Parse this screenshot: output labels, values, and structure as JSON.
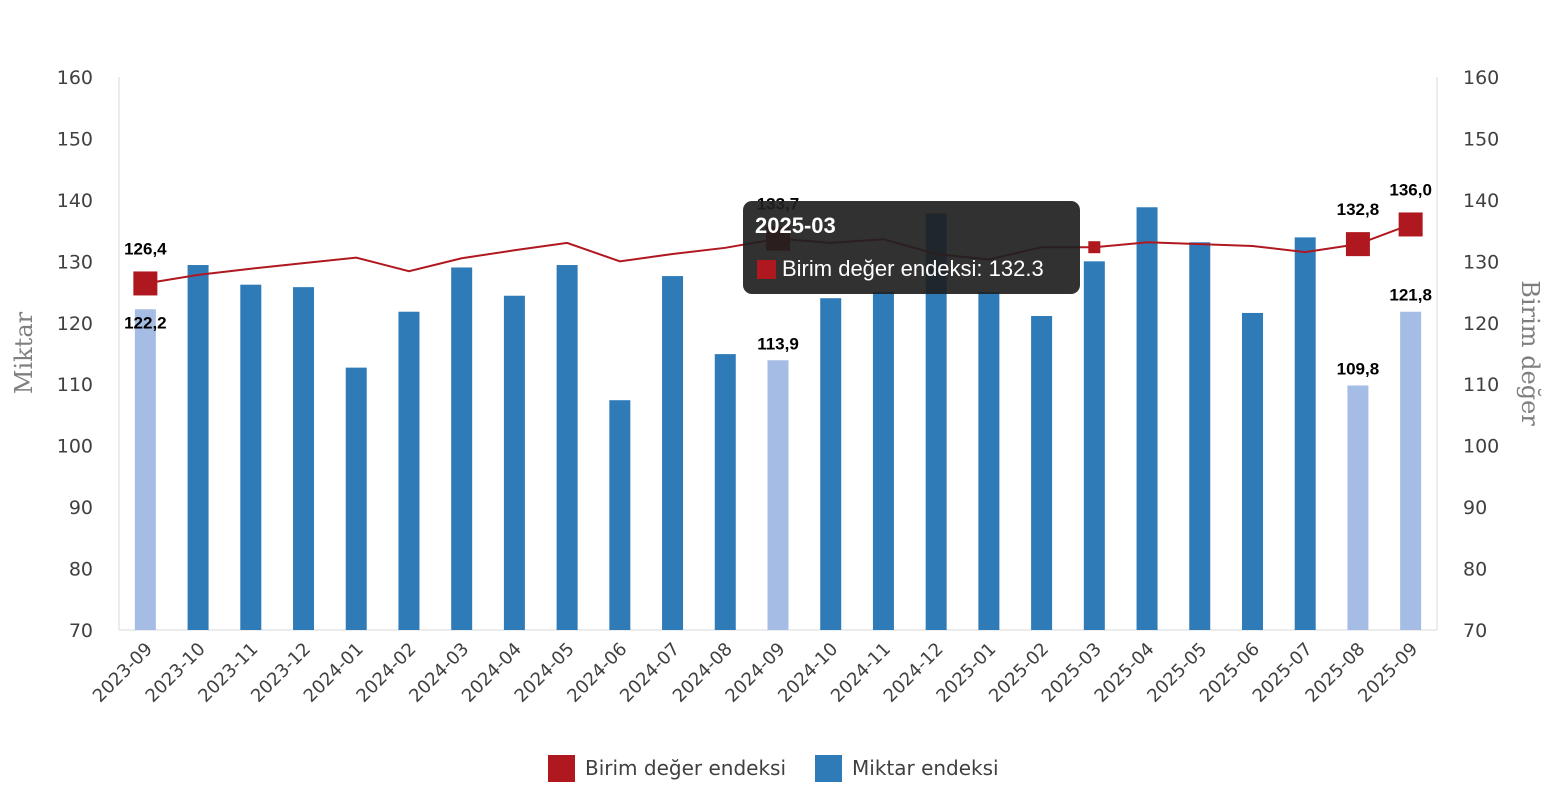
{
  "colors": {
    "bar": "#2f7bb8",
    "bar_highlight": "#a5bde4",
    "line": "#b01820",
    "marker": "#b01820",
    "axis": "#d9d9d9",
    "tooltip_bg": "#202020"
  },
  "chart_data": {
    "type": "bar+line",
    "categories": [
      "2023-09",
      "2023-10",
      "2023-11",
      "2023-12",
      "2024-01",
      "2024-02",
      "2024-03",
      "2024-04",
      "2024-05",
      "2024-06",
      "2024-07",
      "2024-08",
      "2024-09",
      "2024-10",
      "2024-11",
      "2024-12",
      "2025-01",
      "2025-02",
      "2025-03",
      "2025-04",
      "2025-05",
      "2025-06",
      "2025-07",
      "2025-08",
      "2025-09"
    ],
    "series": [
      {
        "name": "Birim değer endeksi",
        "type": "line",
        "axis": "right",
        "values": [
          126.4,
          127.8,
          128.8,
          129.7,
          130.6,
          128.4,
          130.5,
          131.8,
          133.0,
          130.0,
          131.2,
          132.2,
          133.7,
          133.0,
          133.6,
          131.2,
          130.3,
          132.3,
          132.3,
          133.1,
          132.8,
          132.5,
          131.5,
          132.8,
          136.0
        ],
        "highlight_indices": [
          0,
          12,
          23,
          24
        ]
      },
      {
        "name": "Miktar endeksi",
        "type": "bar",
        "axis": "left",
        "values": [
          122.2,
          129.4,
          126.2,
          125.8,
          112.7,
          121.8,
          129.0,
          124.4,
          129.4,
          107.4,
          127.6,
          114.9,
          113.9,
          124.0,
          125.0,
          137.8,
          125.0,
          121.1,
          130.0,
          138.8,
          133.1,
          121.6,
          133.9,
          109.8,
          121.8
        ],
        "highlight_indices": [
          0,
          12,
          23,
          24
        ]
      }
    ],
    "data_labels": [
      {
        "series": 0,
        "index": 0,
        "text": "126,4"
      },
      {
        "series": 0,
        "index": 12,
        "text": "133,7"
      },
      {
        "series": 0,
        "index": 23,
        "text": "132,8"
      },
      {
        "series": 0,
        "index": 24,
        "text": "136,0"
      },
      {
        "series": 1,
        "index": 0,
        "text": "122,2"
      },
      {
        "series": 1,
        "index": 12,
        "text": "113,9"
      },
      {
        "series": 1,
        "index": 23,
        "text": "109,8"
      },
      {
        "series": 1,
        "index": 24,
        "text": "121,8"
      }
    ],
    "y_left": {
      "label": "Miktar",
      "min": 70,
      "max": 160,
      "ticks": [
        70,
        80,
        90,
        100,
        110,
        120,
        130,
        140,
        150,
        160
      ]
    },
    "y_right": {
      "label": "Birim değer",
      "min": 70,
      "max": 160,
      "ticks": [
        70,
        80,
        90,
        100,
        110,
        120,
        130,
        140,
        150,
        160
      ]
    },
    "legend": {
      "position": "bottom",
      "items": [
        "Birim değer endeksi",
        "Miktar endeksi"
      ]
    },
    "grid": false
  },
  "tooltip": {
    "title": "2025-03",
    "series_name": "Birim değer endeksi",
    "value": "132.3",
    "text": "Birim değer endeksi: 132.3",
    "category_index": 18
  }
}
